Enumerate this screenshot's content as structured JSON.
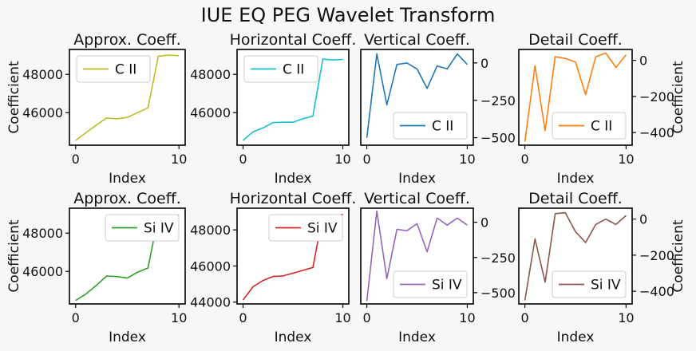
{
  "figure": {
    "title": "IUE EQ PEG Wavelet Transform"
  },
  "chart_data": [
    {
      "type": "line",
      "title": "Approx. Coeff.",
      "xlabel": "Index",
      "ylabel": "Coefficient",
      "yaxis_side": "left",
      "legend_position": "upper-left",
      "xlim": [
        -0.6,
        10.6
      ],
      "ylim": [
        44300,
        49300
      ],
      "xticks": [
        "0",
        "10"
      ],
      "yticks": [
        "46000",
        "48000"
      ],
      "series": [
        {
          "name": "C II",
          "color": "#bcbd22",
          "x": [
            0,
            1,
            2,
            3,
            4,
            5,
            6,
            7,
            8,
            9,
            10
          ],
          "y": [
            44550,
            44950,
            45350,
            45720,
            45680,
            45750,
            46000,
            46250,
            48950,
            49000,
            48980
          ]
        }
      ]
    },
    {
      "type": "line",
      "title": "Horizontal Coeff.",
      "xlabel": "Index",
      "ylabel": "",
      "yaxis_side": "left",
      "legend_position": "upper-left",
      "xlim": [
        -0.6,
        10.6
      ],
      "ylim": [
        44300,
        49300
      ],
      "xticks": [
        "0",
        "10"
      ],
      "yticks": [
        "46000",
        "48000"
      ],
      "series": [
        {
          "name": "C II",
          "color": "#17becf",
          "x": [
            0,
            1,
            2,
            3,
            4,
            5,
            6,
            7,
            8,
            9,
            10
          ],
          "y": [
            44550,
            45000,
            45200,
            45480,
            45500,
            45500,
            45680,
            45820,
            48800,
            48750,
            48780
          ]
        }
      ]
    },
    {
      "type": "line",
      "title": "Vertical Coeff.",
      "xlabel": "Index",
      "ylabel": "",
      "yaxis_side": "right",
      "legend_position": "lower-right",
      "xlim": [
        -0.6,
        10.6
      ],
      "ylim": [
        -550,
        90
      ],
      "xticks": [
        "0",
        "10"
      ],
      "yticks": [
        "0",
        "−250",
        "−500"
      ],
      "series": [
        {
          "name": "C II",
          "color": "#1f77b4",
          "x": [
            0,
            1,
            2,
            3,
            4,
            5,
            6,
            7,
            8,
            9,
            10
          ],
          "y": [
            -500,
            60,
            -280,
            -10,
            0,
            -40,
            -170,
            -20,
            -40,
            60,
            -10
          ]
        }
      ]
    },
    {
      "type": "line",
      "title": "Detail Coeff.",
      "xlabel": "Index",
      "ylabel": "Coefficient",
      "yaxis_side": "right",
      "legend_position": "lower-right",
      "xlim": [
        -0.6,
        10.6
      ],
      "ylim": [
        -470,
        60
      ],
      "xticks": [
        "0",
        "10"
      ],
      "yticks": [
        "0",
        "−200",
        "−400"
      ],
      "series": [
        {
          "name": "C II",
          "color": "#ff7f0e",
          "x": [
            0,
            1,
            2,
            3,
            4,
            5,
            6,
            7,
            8,
            9,
            10
          ],
          "y": [
            -450,
            -30,
            -390,
            20,
            10,
            -10,
            -190,
            20,
            40,
            -40,
            30
          ]
        }
      ]
    },
    {
      "type": "line",
      "title": "Approx. Coeff.",
      "xlabel": "Index",
      "ylabel": "Coefficient",
      "yaxis_side": "left",
      "legend_position": "upper-right",
      "xlim": [
        -0.6,
        10.6
      ],
      "ylim": [
        44300,
        49300
      ],
      "xticks": [
        "0",
        "10"
      ],
      "yticks": [
        "46000",
        "48000"
      ],
      "series": [
        {
          "name": "Si IV",
          "color": "#2ca02c",
          "x": [
            0,
            1,
            2,
            3,
            4,
            5,
            6,
            7,
            8,
            9,
            10
          ],
          "y": [
            44480,
            44820,
            45270,
            45760,
            45730,
            45650,
            45960,
            46180,
            48850,
            48950,
            48920
          ]
        }
      ]
    },
    {
      "type": "line",
      "title": "Horizontal Coeff.",
      "xlabel": "Index",
      "ylabel": "",
      "yaxis_side": "left",
      "legend_position": "upper-right",
      "xlim": [
        -0.6,
        10.6
      ],
      "ylim": [
        43900,
        49200
      ],
      "xticks": [
        "0",
        "10"
      ],
      "yticks": [
        "44000",
        "46000",
        "48000"
      ],
      "series": [
        {
          "name": "Si IV",
          "color": "#d62728",
          "x": [
            0,
            1,
            2,
            3,
            4,
            5,
            6,
            7,
            8,
            9,
            10
          ],
          "y": [
            44120,
            44850,
            45200,
            45420,
            45450,
            45600,
            45760,
            45920,
            48830,
            48770,
            48850
          ]
        }
      ]
    },
    {
      "type": "line",
      "title": "Vertical Coeff.",
      "xlabel": "Index",
      "ylabel": "",
      "yaxis_side": "right",
      "legend_position": "lower-right",
      "xlim": [
        -0.6,
        10.6
      ],
      "ylim": [
        -580,
        100
      ],
      "xticks": [
        "0",
        "10"
      ],
      "yticks": [
        "0",
        "−250",
        "−500"
      ],
      "series": [
        {
          "name": "Si IV",
          "color": "#9467bd",
          "x": [
            0,
            1,
            2,
            3,
            4,
            5,
            6,
            7,
            8,
            9,
            10
          ],
          "y": [
            -560,
            80,
            -400,
            -50,
            -60,
            -10,
            -210,
            30,
            -20,
            30,
            -20
          ]
        }
      ]
    },
    {
      "type": "line",
      "title": "Detail Coeff.",
      "xlabel": "Index",
      "ylabel": "Coefficient",
      "yaxis_side": "right",
      "legend_position": "lower-right",
      "xlim": [
        -0.6,
        10.6
      ],
      "ylim": [
        -470,
        60
      ],
      "xticks": [
        "0",
        "10"
      ],
      "yticks": [
        "0",
        "−200",
        "−400"
      ],
      "series": [
        {
          "name": "Si IV",
          "color": "#8c564b",
          "x": [
            0,
            1,
            2,
            3,
            4,
            5,
            6,
            7,
            8,
            9,
            10
          ],
          "y": [
            -450,
            -110,
            -350,
            30,
            35,
            -70,
            -130,
            -30,
            0,
            -30,
            20
          ]
        }
      ]
    }
  ]
}
